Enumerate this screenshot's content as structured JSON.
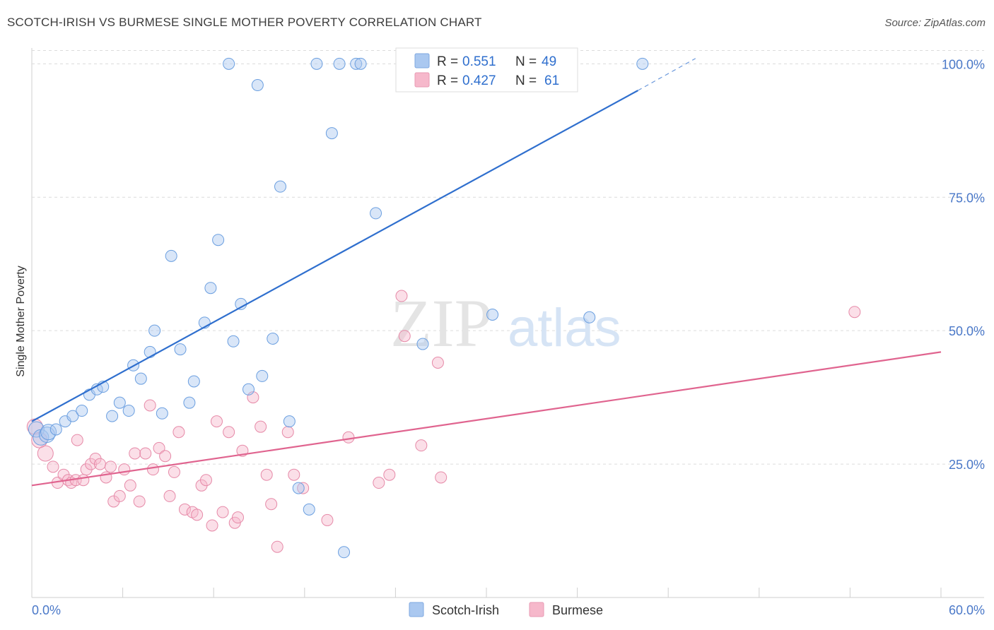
{
  "header": {
    "title": "SCOTCH-IRISH VS BURMESE SINGLE MOTHER POVERTY CORRELATION CHART",
    "source": "Source: ZipAtlas.com"
  },
  "watermark": {
    "zip": "ZIP",
    "atlas": "atlas"
  },
  "legend": {
    "r_label": "R =",
    "n_label": "N =",
    "rows": [
      {
        "swatch": "#aac8f0",
        "r": "0.551",
        "n": "49"
      },
      {
        "swatch": "#f6b8cb",
        "r": "0.427",
        "n": "61"
      }
    ]
  },
  "bottom_legend": [
    "Scotch-Irish",
    "Burmese"
  ],
  "chart_data": {
    "type": "scatter",
    "title": "SCOTCH-IRISH VS BURMESE SINGLE MOTHER POVERTY CORRELATION CHART",
    "xlabel": "",
    "ylabel": "Single Mother Poverty",
    "xlim": [
      0,
      60
    ],
    "ylim": [
      0,
      105
    ],
    "x_tick_labels": [
      "0.0%",
      "60.0%"
    ],
    "y_ticks": [
      25,
      50,
      75,
      100
    ],
    "y_tick_labels": [
      "25.0%",
      "50.0%",
      "75.0%",
      "100.0%"
    ],
    "grid": "horizontal dashed",
    "legend_position": "top-center",
    "colors": {
      "scotch_irish": "#6b9fe0",
      "burmese": "#ef8fae",
      "scotch_irish_line": "#2f6fce",
      "burmese_line": "#e0648f"
    },
    "series": [
      {
        "name": "Scotch-Irish",
        "trend": {
          "x": [
            0.0,
            40.0
          ],
          "y": [
            33.0,
            95.0
          ],
          "dashed_to": [
            43.8,
            101.0
          ]
        },
        "points": [
          [
            0.3,
            31.5
          ],
          [
            0.6,
            30.0
          ],
          [
            1.0,
            30.5
          ],
          [
            1.1,
            31.0
          ],
          [
            1.6,
            31.5
          ],
          [
            2.2,
            33.0
          ],
          [
            2.7,
            34.0
          ],
          [
            3.3,
            35.0
          ],
          [
            3.8,
            38.0
          ],
          [
            4.3,
            39.0
          ],
          [
            4.7,
            39.5
          ],
          [
            5.3,
            34.0
          ],
          [
            5.8,
            36.5
          ],
          [
            6.4,
            35.0
          ],
          [
            6.7,
            43.5
          ],
          [
            7.2,
            41.0
          ],
          [
            7.8,
            46.0
          ],
          [
            8.1,
            50.0
          ],
          [
            8.6,
            34.5
          ],
          [
            9.2,
            64.0
          ],
          [
            9.8,
            46.5
          ],
          [
            10.4,
            36.5
          ],
          [
            10.7,
            40.5
          ],
          [
            11.4,
            51.5
          ],
          [
            11.8,
            58.0
          ],
          [
            12.3,
            67.0
          ],
          [
            13.0,
            100.0
          ],
          [
            13.3,
            48.0
          ],
          [
            13.8,
            55.0
          ],
          [
            14.3,
            39.0
          ],
          [
            14.9,
            96.0
          ],
          [
            15.2,
            41.5
          ],
          [
            15.9,
            48.5
          ],
          [
            16.4,
            77.0
          ],
          [
            17.0,
            33.0
          ],
          [
            17.6,
            20.5
          ],
          [
            18.3,
            16.5
          ],
          [
            18.8,
            100.0
          ],
          [
            19.8,
            87.0
          ],
          [
            20.3,
            100.0
          ],
          [
            20.6,
            8.5
          ],
          [
            21.4,
            100.0
          ],
          [
            21.7,
            100.0
          ],
          [
            22.7,
            72.0
          ],
          [
            24.4,
            100.0
          ],
          [
            25.8,
            47.5
          ],
          [
            30.4,
            53.0
          ],
          [
            36.8,
            52.5
          ],
          [
            40.3,
            100.0
          ]
        ]
      },
      {
        "name": "Burmese",
        "trend": {
          "x": [
            0.0,
            60.0
          ],
          "y": [
            21.0,
            46.0
          ]
        },
        "points": [
          [
            0.2,
            32.0
          ],
          [
            0.5,
            29.5
          ],
          [
            0.9,
            27.0
          ],
          [
            1.4,
            24.5
          ],
          [
            1.7,
            21.5
          ],
          [
            2.1,
            23.0
          ],
          [
            2.4,
            22.0
          ],
          [
            2.6,
            21.5
          ],
          [
            2.9,
            22.0
          ],
          [
            3.0,
            29.5
          ],
          [
            3.4,
            22.0
          ],
          [
            3.6,
            24.0
          ],
          [
            3.9,
            25.0
          ],
          [
            4.2,
            26.0
          ],
          [
            4.5,
            25.0
          ],
          [
            4.9,
            22.5
          ],
          [
            5.2,
            24.5
          ],
          [
            5.4,
            18.0
          ],
          [
            5.8,
            19.0
          ],
          [
            6.1,
            24.0
          ],
          [
            6.5,
            21.0
          ],
          [
            6.8,
            27.0
          ],
          [
            7.1,
            18.0
          ],
          [
            7.5,
            27.0
          ],
          [
            7.8,
            36.0
          ],
          [
            8.0,
            24.0
          ],
          [
            8.4,
            28.0
          ],
          [
            8.8,
            26.5
          ],
          [
            9.1,
            19.0
          ],
          [
            9.4,
            23.5
          ],
          [
            9.7,
            31.0
          ],
          [
            10.1,
            16.5
          ],
          [
            10.6,
            16.0
          ],
          [
            10.9,
            15.5
          ],
          [
            11.2,
            21.0
          ],
          [
            11.5,
            22.0
          ],
          [
            11.9,
            13.5
          ],
          [
            12.2,
            33.0
          ],
          [
            12.6,
            16.0
          ],
          [
            13.0,
            31.0
          ],
          [
            13.4,
            14.0
          ],
          [
            13.6,
            15.0
          ],
          [
            13.9,
            27.5
          ],
          [
            14.6,
            37.5
          ],
          [
            15.1,
            32.0
          ],
          [
            15.5,
            23.0
          ],
          [
            15.8,
            17.5
          ],
          [
            16.2,
            9.5
          ],
          [
            16.9,
            31.0
          ],
          [
            17.3,
            23.0
          ],
          [
            17.9,
            20.5
          ],
          [
            19.5,
            14.5
          ],
          [
            20.9,
            30.0
          ],
          [
            22.9,
            21.5
          ],
          [
            23.6,
            23.0
          ],
          [
            24.4,
            56.5
          ],
          [
            24.6,
            49.0
          ],
          [
            25.7,
            28.5
          ],
          [
            26.8,
            44.0
          ],
          [
            27.0,
            22.5
          ],
          [
            54.3,
            53.5
          ]
        ]
      }
    ]
  }
}
